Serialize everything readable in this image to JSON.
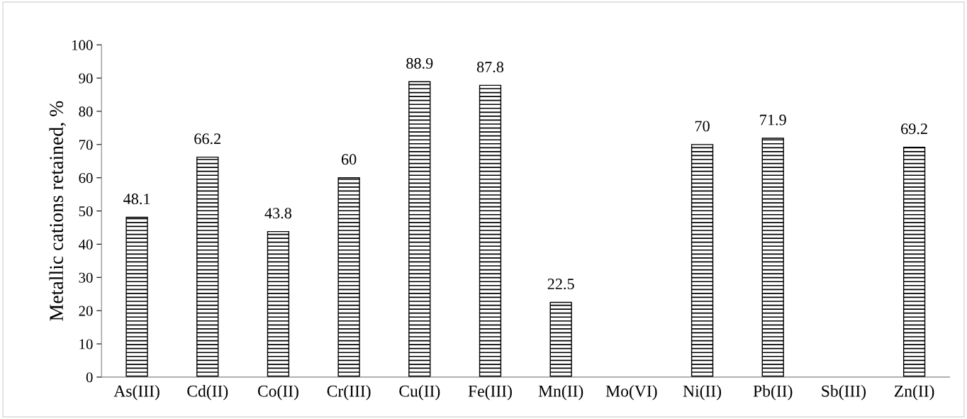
{
  "chart_data": {
    "type": "bar",
    "ylabel": "Metallic cations retained, %",
    "categories": [
      "As(III)",
      "Cd(II)",
      "Co(II)",
      "Cr(III)",
      "Cu(II)",
      "Fe(III)",
      "Mn(II)",
      "Mo(VI)",
      "Ni(II)",
      "Pb(II)",
      "Sb(III)",
      "Zn(II)"
    ],
    "values": [
      48.1,
      66.2,
      43.8,
      60,
      88.9,
      87.8,
      22.5,
      null,
      70,
      71.9,
      null,
      69.2
    ],
    "color": "#000000",
    "ylim": [
      0,
      100
    ],
    "yticks": [
      0,
      10,
      20,
      30,
      40,
      50,
      60,
      70,
      80,
      90,
      100
    ],
    "data_labels": true,
    "grid": false,
    "legend": false
  }
}
